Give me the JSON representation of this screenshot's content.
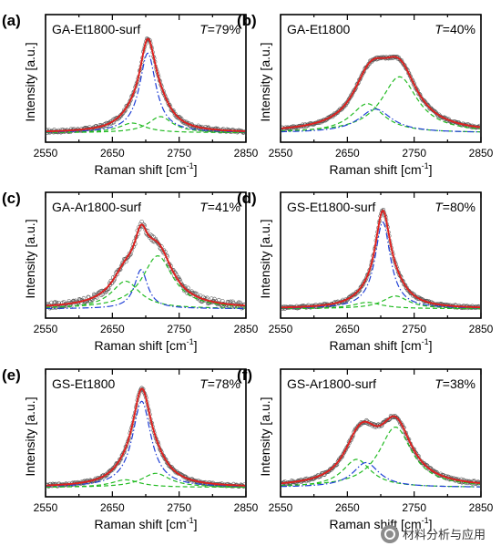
{
  "watermark": {
    "text": "材料分析与应用",
    "icon": "wechat-logo-icon"
  },
  "colors": {
    "data": "#555555",
    "fit": "#e0201e",
    "green": "#22bb22",
    "blue": "#1f3fd6",
    "frame": "#000000"
  },
  "chart_data": [
    {
      "panel": "(a)",
      "name": "GA-Et1800-surf",
      "T_label": "T",
      "T_value": "=79%",
      "type": "line",
      "xlabel": "Raman shift [cm⁻¹]",
      "ylabel": "Intensity [a.u.]",
      "xlim": [
        2550,
        2850
      ],
      "xticks": [
        "2550",
        "2650",
        "2750",
        "2850"
      ],
      "peaks": {
        "blue": [
          {
            "center": 2703,
            "amplitude": 0.74,
            "hwhm": 15
          }
        ],
        "green": [
          {
            "center": 2680,
            "amplitude": 0.09,
            "hwhm": 24
          },
          {
            "center": 2722,
            "amplitude": 0.15,
            "hwhm": 22
          }
        ],
        "baseline": 0.02,
        "noise": 0.015
      }
    },
    {
      "panel": "(b)",
      "name": "GA-Et1800",
      "T_label": "T",
      "T_value": "=40%",
      "type": "line",
      "xlabel": "Raman shift [cm⁻¹]",
      "ylabel": "Intensity [a.u.]",
      "xlim": [
        2550,
        2850
      ],
      "xticks": [
        "2550",
        "2650",
        "2750",
        "2850"
      ],
      "peaks": {
        "blue": [
          {
            "center": 2692,
            "amplitude": 0.22,
            "hwhm": 30
          }
        ],
        "green": [
          {
            "center": 2680,
            "amplitude": 0.27,
            "hwhm": 30
          },
          {
            "center": 2728,
            "amplitude": 0.52,
            "hwhm": 33
          }
        ],
        "baseline": 0.02,
        "noise": 0.012
      }
    },
    {
      "panel": "(c)",
      "name": "GA-Ar1800-surf",
      "T_label": "T",
      "T_value": "=41%",
      "type": "line",
      "xlabel": "Raman shift [cm⁻¹]",
      "ylabel": "Intensity [a.u.]",
      "xlim": [
        2550,
        2850
      ],
      "xticks": [
        "2550",
        "2650",
        "2750",
        "2850"
      ],
      "peaks": {
        "blue": [
          {
            "center": 2693,
            "amplitude": 0.37,
            "hwhm": 12
          }
        ],
        "green": [
          {
            "center": 2670,
            "amplitude": 0.26,
            "hwhm": 26
          },
          {
            "center": 2718,
            "amplitude": 0.5,
            "hwhm": 28
          }
        ],
        "baseline": 0.02,
        "noise": 0.03
      }
    },
    {
      "panel": "(d)",
      "name": "GS-Et1800-surf",
      "T_label": "T",
      "T_value": "=80%",
      "type": "line",
      "xlabel": "Raman shift [cm⁻¹]",
      "ylabel": "Intensity [a.u.]",
      "xlim": [
        2550,
        2850
      ],
      "xticks": [
        "2550",
        "2650",
        "2750",
        "2850"
      ],
      "peaks": {
        "blue": [
          {
            "center": 2703,
            "amplitude": 0.82,
            "hwhm": 14
          }
        ],
        "green": [
          {
            "center": 2680,
            "amplitude": 0.06,
            "hwhm": 26
          },
          {
            "center": 2722,
            "amplitude": 0.12,
            "hwhm": 24
          }
        ],
        "baseline": 0.02,
        "noise": 0.012
      }
    },
    {
      "panel": "(e)",
      "name": "GS-Et1800",
      "T_label": "T",
      "T_value": "=78%",
      "type": "line",
      "xlabel": "Raman shift [cm⁻¹]",
      "ylabel": "Intensity [a.u.]",
      "xlim": [
        2550,
        2850
      ],
      "xticks": [
        "2550",
        "2650",
        "2750",
        "2850"
      ],
      "peaks": {
        "blue": [
          {
            "center": 2694,
            "amplitude": 0.8,
            "hwhm": 17
          }
        ],
        "green": [
          {
            "center": 2670,
            "amplitude": 0.07,
            "hwhm": 26
          },
          {
            "center": 2715,
            "amplitude": 0.13,
            "hwhm": 26
          }
        ],
        "baseline": 0.02,
        "noise": 0.012
      }
    },
    {
      "panel": "(f)",
      "name": "GS-Ar1800-surf",
      "T_label": "T",
      "T_value": "=38%",
      "type": "line",
      "xlabel": "Raman shift [cm⁻¹]",
      "ylabel": "Intensity [a.u.]",
      "xlim": [
        2550,
        2850
      ],
      "xticks": [
        "2550",
        "2650",
        "2750",
        "2850"
      ],
      "peaks": {
        "blue": [
          {
            "center": 2678,
            "amplitude": 0.23,
            "hwhm": 24
          }
        ],
        "green": [
          {
            "center": 2664,
            "amplitude": 0.26,
            "hwhm": 26
          },
          {
            "center": 2722,
            "amplitude": 0.56,
            "hwhm": 30
          }
        ],
        "baseline": 0.02,
        "noise": 0.015
      }
    }
  ]
}
